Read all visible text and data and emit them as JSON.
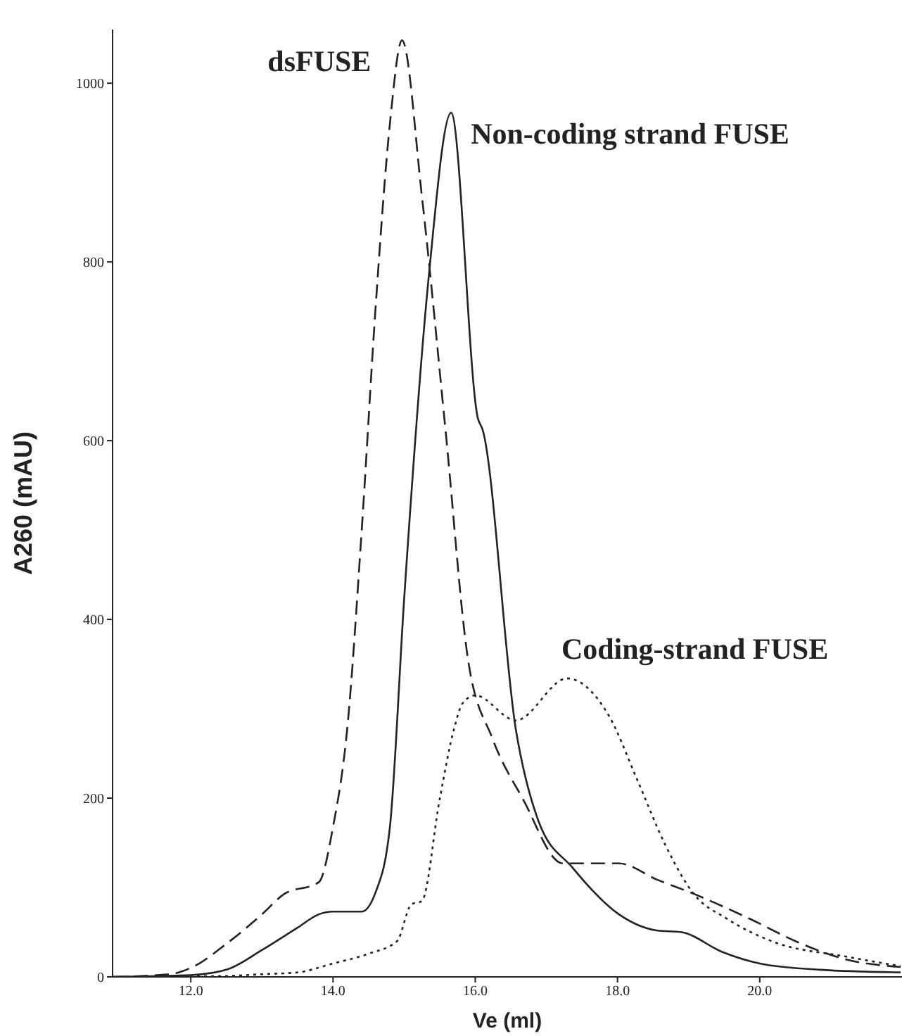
{
  "chart_data": {
    "type": "line",
    "xlabel": "Ve (ml)",
    "ylabel": "A260 (mAU)",
    "xlim": [
      10.9,
      22
    ],
    "ylim": [
      0,
      1060
    ],
    "xticks": [
      {
        "value": 12,
        "label": "12.0"
      },
      {
        "value": 14,
        "label": "14.0"
      },
      {
        "value": 16,
        "label": "16.0"
      },
      {
        "value": 18,
        "label": "18.0"
      },
      {
        "value": 20,
        "label": "20.0"
      }
    ],
    "yticks": [
      0,
      200,
      400,
      600,
      800,
      1000
    ],
    "marker": "none",
    "series": [
      {
        "name": "dsFUSE",
        "color": "#222222",
        "line_style": "dashed",
        "x": [
          10.9,
          11.7,
          12.0,
          12.5,
          13.0,
          13.3,
          13.8,
          14.0,
          14.2,
          14.4,
          14.6,
          14.8,
          14.97,
          15.25,
          15.58,
          15.9,
          16.24,
          16.67,
          17.23,
          18.02,
          18.55,
          19.07,
          19.86,
          20.53,
          21.19,
          21.98
        ],
        "values": [
          0,
          3,
          10,
          37,
          70,
          92,
          106,
          168,
          278,
          496,
          751,
          955,
          1048,
          873,
          613,
          354,
          267,
          199,
          127,
          127,
          109,
          93,
          65,
          39,
          20,
          11
        ]
      },
      {
        "name": "Non-coding strand FUSE",
        "color": "#222222",
        "line_style": "solid",
        "x": [
          10.9,
          12.0,
          12.5,
          13.0,
          13.5,
          13.8,
          14.0,
          14.4,
          14.6,
          14.8,
          15.0,
          15.35,
          15.66,
          16.04,
          16.1,
          16.57,
          16.89,
          17.37,
          18.02,
          18.55,
          18.9,
          19.47,
          20.0,
          20.85,
          21.98
        ],
        "values": [
          0,
          2,
          8,
          30,
          55,
          70,
          73,
          73,
          95,
          168,
          423,
          787,
          967,
          624,
          613,
          277,
          174,
          122,
          70,
          52,
          50,
          28,
          15,
          8,
          5
        ]
      },
      {
        "name": "Coding-strand FUSE",
        "color": "#222222",
        "line_style": "dotted",
        "x": [
          10.9,
          12.5,
          13.0,
          13.5,
          14.0,
          14.5,
          14.9,
          15.1,
          15.25,
          15.5,
          15.7,
          15.82,
          16.0,
          16.57,
          17.29,
          17.88,
          18.28,
          18.67,
          19.07,
          19.54,
          20.2,
          21.19,
          21.98
        ],
        "values": [
          0,
          1,
          3,
          5,
          15,
          26,
          40,
          81,
          85,
          199,
          277,
          306,
          315,
          287,
          334,
          292,
          220,
          148,
          93,
          65,
          39,
          23,
          12
        ]
      }
    ]
  }
}
